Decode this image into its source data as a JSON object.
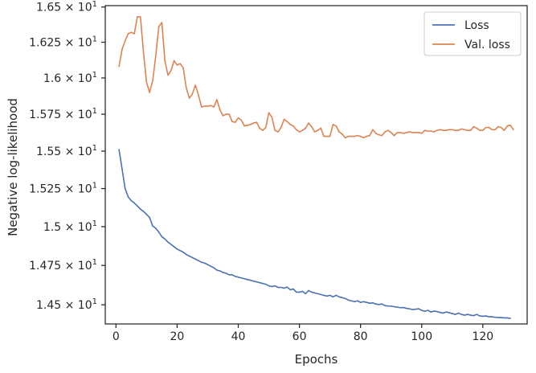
{
  "chart_data": {
    "type": "line",
    "xlabel": "Epochs",
    "ylabel": "Negative log-likelihood",
    "xlim": [
      -3.5,
      134.5
    ],
    "ylim": [
      14.38,
      16.51
    ],
    "y_scale": "log",
    "x_ticks": [
      0,
      20,
      40,
      60,
      80,
      100,
      120
    ],
    "x_tick_labels": [
      "0",
      "20",
      "40",
      "60",
      "80",
      "100",
      "120"
    ],
    "y_ticks": [
      14.5,
      14.75,
      15.0,
      15.25,
      15.5,
      15.75,
      16.0,
      16.25,
      16.5
    ],
    "y_tick_labels": [
      {
        "mantissa": "1.45",
        "base": "10",
        "exp": "1"
      },
      {
        "mantissa": "1.475",
        "base": "10",
        "exp": "1"
      },
      {
        "mantissa": "1.5",
        "base": "10",
        "exp": "1"
      },
      {
        "mantissa": "1.525",
        "base": "10",
        "exp": "1"
      },
      {
        "mantissa": "1.55",
        "base": "10",
        "exp": "1"
      },
      {
        "mantissa": "1.575",
        "base": "10",
        "exp": "1"
      },
      {
        "mantissa": "1.6",
        "base": "10",
        "exp": "1"
      },
      {
        "mantissa": "1.625",
        "base": "10",
        "exp": "1"
      },
      {
        "mantissa": "1.65",
        "base": "10",
        "exp": "1"
      }
    ],
    "grid": false,
    "legend_position": "top-right",
    "series": [
      {
        "name": "Loss",
        "color": "#4c72b0",
        "points": [
          [
            1,
            15.51
          ],
          [
            2,
            15.38
          ],
          [
            3,
            15.25
          ],
          [
            4,
            15.195
          ],
          [
            5,
            15.17
          ],
          [
            6,
            15.155
          ],
          [
            7,
            15.135
          ],
          [
            8,
            15.115
          ],
          [
            9,
            15.1
          ],
          [
            10,
            15.08
          ],
          [
            11,
            15.06
          ],
          [
            12,
            15.005
          ],
          [
            13,
            14.99
          ],
          [
            14,
            14.965
          ],
          [
            15,
            14.935
          ],
          [
            16,
            14.92
          ],
          [
            17,
            14.9
          ],
          [
            18,
            14.885
          ],
          [
            19,
            14.87
          ],
          [
            20,
            14.855
          ],
          [
            21,
            14.845
          ],
          [
            22,
            14.835
          ],
          [
            23,
            14.82
          ],
          [
            24,
            14.81
          ],
          [
            25,
            14.8
          ],
          [
            26,
            14.79
          ],
          [
            27,
            14.78
          ],
          [
            28,
            14.77
          ],
          [
            29,
            14.765
          ],
          [
            30,
            14.755
          ],
          [
            31,
            14.745
          ],
          [
            32,
            14.735
          ],
          [
            33,
            14.72
          ],
          [
            34,
            14.715
          ],
          [
            35,
            14.705
          ],
          [
            36,
            14.7
          ],
          [
            37,
            14.69
          ],
          [
            38,
            14.69
          ],
          [
            39,
            14.68
          ],
          [
            40,
            14.675
          ],
          [
            41,
            14.67
          ],
          [
            42,
            14.665
          ],
          [
            43,
            14.66
          ],
          [
            44,
            14.655
          ],
          [
            45,
            14.65
          ],
          [
            46,
            14.645
          ],
          [
            47,
            14.64
          ],
          [
            48,
            14.635
          ],
          [
            49,
            14.63
          ],
          [
            50,
            14.62
          ],
          [
            51,
            14.615
          ],
          [
            52,
            14.62
          ],
          [
            53,
            14.61
          ],
          [
            54,
            14.61
          ],
          [
            55,
            14.605
          ],
          [
            56,
            14.612
          ],
          [
            57,
            14.595
          ],
          [
            58,
            14.6
          ],
          [
            59,
            14.58
          ],
          [
            60,
            14.58
          ],
          [
            61,
            14.585
          ],
          [
            62,
            14.57
          ],
          [
            63,
            14.59
          ],
          [
            64,
            14.58
          ],
          [
            65,
            14.575
          ],
          [
            66,
            14.57
          ],
          [
            67,
            14.565
          ],
          [
            68,
            14.56
          ],
          [
            69,
            14.555
          ],
          [
            70,
            14.56
          ],
          [
            71,
            14.55
          ],
          [
            72,
            14.56
          ],
          [
            73,
            14.55
          ],
          [
            74,
            14.545
          ],
          [
            75,
            14.54
          ],
          [
            76,
            14.53
          ],
          [
            77,
            14.525
          ],
          [
            78,
            14.52
          ],
          [
            79,
            14.525
          ],
          [
            80,
            14.515
          ],
          [
            81,
            14.52
          ],
          [
            82,
            14.515
          ],
          [
            83,
            14.51
          ],
          [
            84,
            14.512
          ],
          [
            85,
            14.505
          ],
          [
            86,
            14.502
          ],
          [
            87,
            14.505
          ],
          [
            88,
            14.495
          ],
          [
            89,
            14.492
          ],
          [
            90,
            14.492
          ],
          [
            91,
            14.488
          ],
          [
            92,
            14.485
          ],
          [
            93,
            14.482
          ],
          [
            94,
            14.483
          ],
          [
            95,
            14.478
          ],
          [
            96,
            14.475
          ],
          [
            97,
            14.47
          ],
          [
            98,
            14.472
          ],
          [
            99,
            14.475
          ],
          [
            100,
            14.465
          ],
          [
            101,
            14.46
          ],
          [
            102,
            14.465
          ],
          [
            103,
            14.455
          ],
          [
            104,
            14.46
          ],
          [
            105,
            14.458
          ],
          [
            106,
            14.452
          ],
          [
            107,
            14.448
          ],
          [
            108,
            14.455
          ],
          [
            109,
            14.45
          ],
          [
            110,
            14.445
          ],
          [
            111,
            14.44
          ],
          [
            112,
            14.448
          ],
          [
            113,
            14.44
          ],
          [
            114,
            14.435
          ],
          [
            115,
            14.44
          ],
          [
            116,
            14.435
          ],
          [
            117,
            14.432
          ],
          [
            118,
            14.44
          ],
          [
            119,
            14.43
          ],
          [
            120,
            14.428
          ],
          [
            121,
            14.43
          ],
          [
            122,
            14.425
          ],
          [
            123,
            14.425
          ],
          [
            124,
            14.422
          ],
          [
            125,
            14.42
          ],
          [
            126,
            14.42
          ],
          [
            127,
            14.418
          ],
          [
            128,
            14.418
          ],
          [
            129,
            14.415
          ]
        ]
      },
      {
        "name": "Val. loss",
        "color": "#dd8452",
        "points": [
          [
            1,
            16.08
          ],
          [
            2,
            16.2
          ],
          [
            3,
            16.26
          ],
          [
            4,
            16.31
          ],
          [
            5,
            16.32
          ],
          [
            6,
            16.31
          ],
          [
            7,
            16.43
          ],
          [
            8,
            16.43
          ],
          [
            9,
            16.18
          ],
          [
            10,
            15.97
          ],
          [
            11,
            15.9
          ],
          [
            12,
            15.98
          ],
          [
            13,
            16.15
          ],
          [
            14,
            16.36
          ],
          [
            15,
            16.39
          ],
          [
            16,
            16.12
          ],
          [
            17,
            16.02
          ],
          [
            18,
            16.05
          ],
          [
            19,
            16.12
          ],
          [
            20,
            16.09
          ],
          [
            21,
            16.1
          ],
          [
            22,
            16.07
          ],
          [
            23,
            15.93
          ],
          [
            24,
            15.86
          ],
          [
            25,
            15.89
          ],
          [
            26,
            15.95
          ],
          [
            27,
            15.88
          ],
          [
            28,
            15.8
          ],
          [
            29,
            15.805
          ],
          [
            30,
            15.805
          ],
          [
            31,
            15.81
          ],
          [
            32,
            15.8
          ],
          [
            33,
            15.85
          ],
          [
            34,
            15.78
          ],
          [
            35,
            15.74
          ],
          [
            36,
            15.75
          ],
          [
            37,
            15.75
          ],
          [
            38,
            15.7
          ],
          [
            39,
            15.695
          ],
          [
            40,
            15.725
          ],
          [
            41,
            15.71
          ],
          [
            42,
            15.67
          ],
          [
            43,
            15.675
          ],
          [
            44,
            15.68
          ],
          [
            45,
            15.69
          ],
          [
            46,
            15.695
          ],
          [
            47,
            15.655
          ],
          [
            48,
            15.64
          ],
          [
            49,
            15.66
          ],
          [
            50,
            15.76
          ],
          [
            51,
            15.73
          ],
          [
            52,
            15.64
          ],
          [
            53,
            15.63
          ],
          [
            54,
            15.66
          ],
          [
            55,
            15.715
          ],
          [
            56,
            15.7
          ],
          [
            57,
            15.68
          ],
          [
            58,
            15.67
          ],
          [
            59,
            15.645
          ],
          [
            60,
            15.63
          ],
          [
            61,
            15.64
          ],
          [
            62,
            15.655
          ],
          [
            63,
            15.69
          ],
          [
            64,
            15.665
          ],
          [
            65,
            15.63
          ],
          [
            66,
            15.64
          ],
          [
            67,
            15.655
          ],
          [
            68,
            15.6
          ],
          [
            69,
            15.6
          ],
          [
            70,
            15.6
          ],
          [
            71,
            15.68
          ],
          [
            72,
            15.67
          ],
          [
            73,
            15.63
          ],
          [
            74,
            15.615
          ],
          [
            75,
            15.59
          ],
          [
            76,
            15.6
          ],
          [
            77,
            15.6
          ],
          [
            78,
            15.6
          ],
          [
            79,
            15.605
          ],
          [
            80,
            15.6
          ],
          [
            81,
            15.59
          ],
          [
            82,
            15.6
          ],
          [
            83,
            15.605
          ],
          [
            84,
            15.645
          ],
          [
            85,
            15.62
          ],
          [
            86,
            15.61
          ],
          [
            87,
            15.605
          ],
          [
            88,
            15.63
          ],
          [
            89,
            15.64
          ],
          [
            90,
            15.625
          ],
          [
            91,
            15.605
          ],
          [
            92,
            15.625
          ],
          [
            93,
            15.625
          ],
          [
            94,
            15.62
          ],
          [
            95,
            15.625
          ],
          [
            96,
            15.63
          ],
          [
            97,
            15.625
          ],
          [
            98,
            15.625
          ],
          [
            99,
            15.625
          ],
          [
            100,
            15.62
          ],
          [
            101,
            15.64
          ],
          [
            102,
            15.635
          ],
          [
            103,
            15.635
          ],
          [
            104,
            15.63
          ],
          [
            105,
            15.64
          ],
          [
            106,
            15.645
          ],
          [
            107,
            15.64
          ],
          [
            108,
            15.64
          ],
          [
            109,
            15.645
          ],
          [
            110,
            15.645
          ],
          [
            111,
            15.64
          ],
          [
            112,
            15.64
          ],
          [
            113,
            15.65
          ],
          [
            114,
            15.645
          ],
          [
            115,
            15.64
          ],
          [
            116,
            15.64
          ],
          [
            117,
            15.665
          ],
          [
            118,
            15.655
          ],
          [
            119,
            15.64
          ],
          [
            120,
            15.64
          ],
          [
            121,
            15.66
          ],
          [
            122,
            15.66
          ],
          [
            123,
            15.645
          ],
          [
            124,
            15.645
          ],
          [
            125,
            15.665
          ],
          [
            126,
            15.66
          ],
          [
            127,
            15.64
          ],
          [
            128,
            15.67
          ],
          [
            129,
            15.675
          ],
          [
            130,
            15.645
          ]
        ]
      }
    ]
  }
}
